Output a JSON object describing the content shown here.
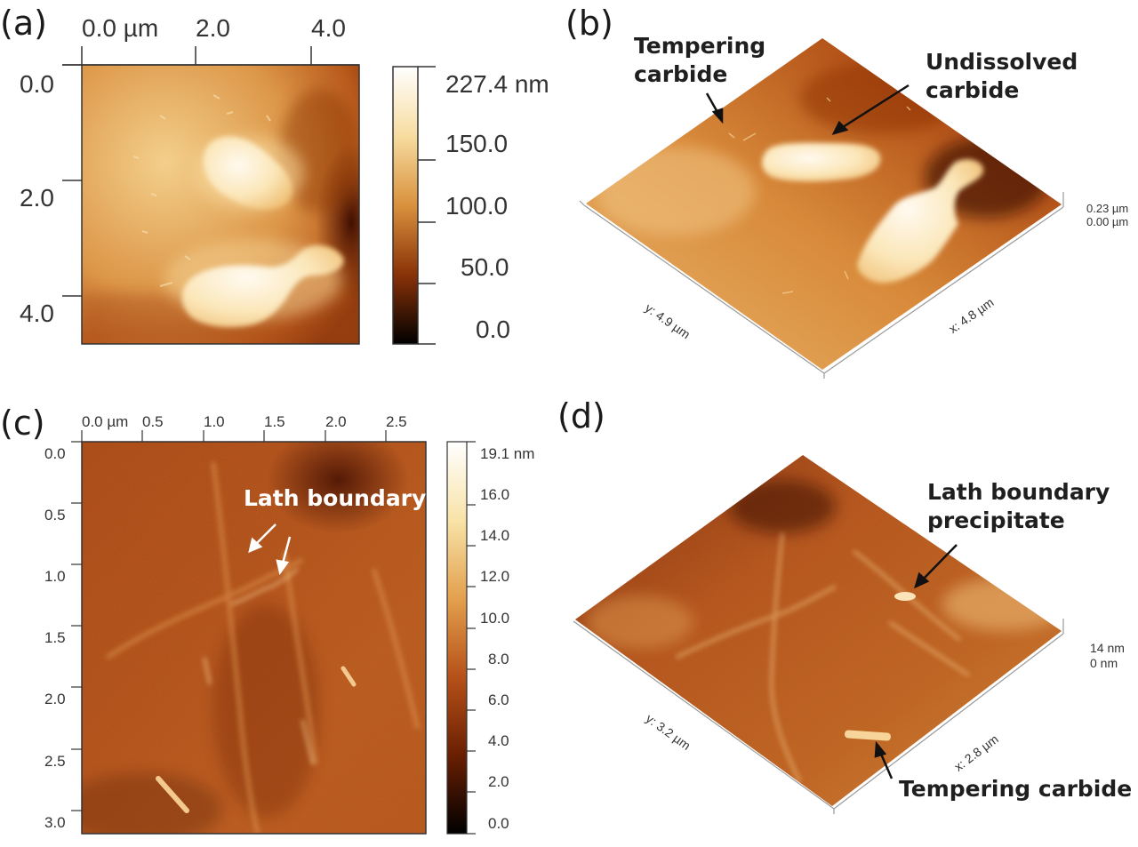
{
  "panels": {
    "a": {
      "label": "(a)",
      "x_ticks": [
        "0.0 µm",
        "2.0",
        "4.0"
      ],
      "y_ticks": [
        "0.0",
        "2.0",
        "4.0"
      ],
      "colorbar": [
        "227.4 nm",
        "150.0",
        "100.0",
        "50.0",
        "0.0"
      ]
    },
    "b": {
      "label": "(b)",
      "annotations": {
        "tempering_carbide": [
          "Tempering",
          "carbide"
        ],
        "undissolved_carbide": [
          "Undissolved",
          "carbide"
        ]
      },
      "y_axis": "y: 4.9 µm",
      "x_axis": "x: 4.8 µm",
      "z_max": "0.23 µm",
      "z_min": "0.00 µm"
    },
    "c": {
      "label": "(c)",
      "x_ticks": [
        "0.0 µm",
        "0.5",
        "1.0",
        "1.5",
        "2.0",
        "2.5"
      ],
      "y_ticks": [
        "0.0",
        "0.5",
        "1.0",
        "1.5",
        "2.0",
        "2.5",
        "3.0"
      ],
      "colorbar": [
        "19.1 nm",
        "16.0",
        "14.0",
        "12.0",
        "10.0",
        "8.0",
        "6.0",
        "4.0",
        "2.0",
        "0.0"
      ],
      "annotation": "Lath boundary"
    },
    "d": {
      "label": "(d)",
      "annotations": {
        "lath_boundary_precipitate": [
          "Lath boundary",
          "precipitate"
        ],
        "tempering_carbide": "Tempering carbide"
      },
      "y_axis": "y: 3.2 µm",
      "x_axis": "x: 2.8 µm",
      "z_max": "14 nm",
      "z_min": "0 nm"
    }
  },
  "colors": {
    "afm_light": "#f3d08a",
    "afm_mid": "#c1601c",
    "afm_dark": "#2a0800",
    "highlight": "#fdf2d6"
  }
}
